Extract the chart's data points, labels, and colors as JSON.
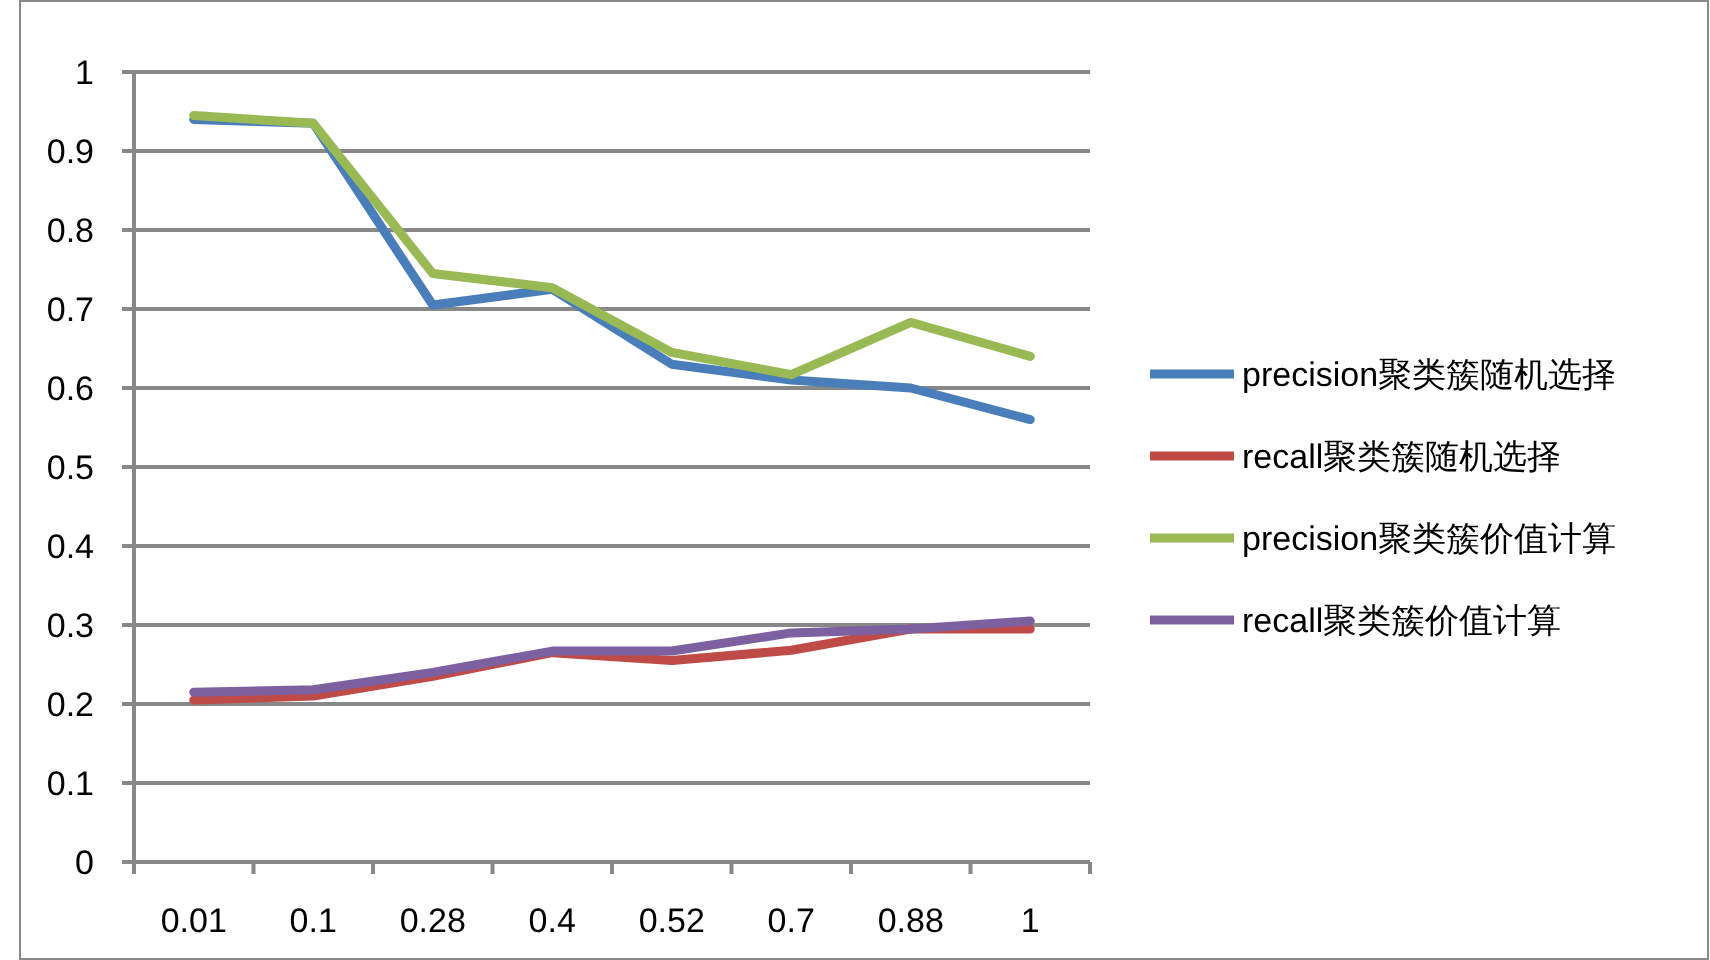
{
  "chart_data": {
    "type": "line",
    "categories": [
      "0.01",
      "0.1",
      "0.28",
      "0.4",
      "0.52",
      "0.7",
      "0.88",
      "1"
    ],
    "series": [
      {
        "name": "precision聚类簇随机选择",
        "color": "#4a7ebb",
        "values": [
          0.94,
          0.935,
          0.705,
          0.725,
          0.63,
          0.61,
          0.6,
          0.56
        ]
      },
      {
        "name": "recall聚类簇随机选择",
        "color": "#be4b48",
        "values": [
          0.205,
          0.21,
          0.235,
          0.265,
          0.255,
          0.268,
          0.295,
          0.295
        ]
      },
      {
        "name": "precision聚类簇价值计算",
        "color": "#98b954",
        "values": [
          0.945,
          0.935,
          0.745,
          0.727,
          0.645,
          0.617,
          0.683,
          0.64
        ]
      },
      {
        "name": "recall聚类簇价值计算",
        "color": "#7d60a0",
        "values": [
          0.215,
          0.218,
          0.24,
          0.267,
          0.267,
          0.29,
          0.295,
          0.305
        ]
      }
    ],
    "ylim": [
      0,
      1
    ],
    "yticks": [
      0,
      0.1,
      0.2,
      0.3,
      0.4,
      0.5,
      0.6,
      0.7,
      0.8,
      0.9,
      1
    ],
    "grid": "y",
    "legend": "right",
    "marker": "none",
    "line_style": "solid"
  }
}
